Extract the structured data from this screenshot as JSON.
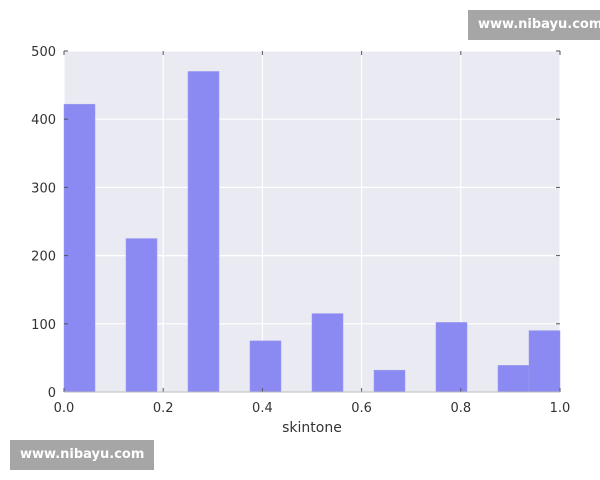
{
  "chart_data": {
    "type": "bar",
    "title": "",
    "xlabel": "skintone",
    "ylabel": "",
    "bin_edges": [
      0,
      0.0625,
      0.125,
      0.1875,
      0.25,
      0.3125,
      0.375,
      0.4375,
      0.5,
      0.5625,
      0.625,
      0.6875,
      0.75,
      0.8125,
      0.875,
      0.9375,
      1.0
    ],
    "values": [
      422,
      0,
      225,
      0,
      470,
      0,
      75,
      0,
      115,
      0,
      32,
      0,
      102,
      0,
      39,
      90
    ],
    "xlim": [
      0,
      1.0
    ],
    "ylim": [
      0,
      500
    ],
    "xticks": [
      "0.0",
      "0.2",
      "0.4",
      "0.6",
      "0.8",
      "1.0"
    ],
    "yticks": [
      "0",
      "100",
      "200",
      "300",
      "400",
      "500"
    ],
    "grid": true,
    "bar_color": "#8a8af2",
    "background": "#eaeaf2"
  },
  "watermarks": [
    "www.nibayu.com",
    "www.nibayu.com"
  ]
}
